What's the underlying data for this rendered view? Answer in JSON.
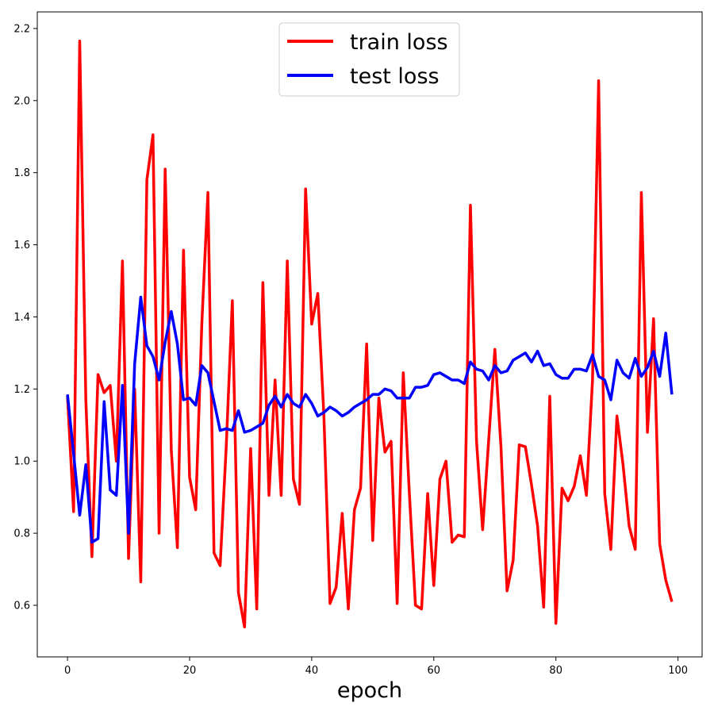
{
  "chart_data": {
    "type": "line",
    "title": "",
    "xlabel": "epoch",
    "ylabel": "",
    "xlim": [
      -4.95,
      103.95
    ],
    "ylim": [
      0.457,
      2.246
    ],
    "xticks": [
      0,
      20,
      40,
      60,
      80,
      100
    ],
    "yticks": [
      0.6,
      0.8,
      1.0,
      1.2,
      1.4,
      1.6,
      1.8,
      2.0,
      2.2
    ],
    "grid": false,
    "legend": "top-center",
    "series": [
      {
        "name": "train loss",
        "color": "#ff0000",
        "x": [
          0,
          1,
          2,
          3,
          4,
          5,
          6,
          7,
          8,
          9,
          10,
          11,
          12,
          13,
          14,
          15,
          16,
          17,
          18,
          19,
          20,
          21,
          22,
          23,
          24,
          25,
          26,
          27,
          28,
          29,
          30,
          31,
          32,
          33,
          34,
          35,
          36,
          37,
          38,
          39,
          40,
          41,
          42,
          43,
          44,
          45,
          46,
          47,
          48,
          49,
          50,
          51,
          52,
          53,
          54,
          55,
          56,
          57,
          58,
          59,
          60,
          61,
          62,
          63,
          64,
          65,
          66,
          67,
          68,
          69,
          70,
          71,
          72,
          73,
          74,
          75,
          76,
          77,
          78,
          79,
          80,
          81,
          82,
          83,
          84,
          85,
          86,
          87,
          88,
          89,
          90,
          91,
          92,
          93,
          94,
          95,
          96,
          97,
          98,
          99
        ],
        "values": [
          1.18,
          0.86,
          2.165,
          1.17,
          0.735,
          1.24,
          1.19,
          1.21,
          1.0,
          1.555,
          0.73,
          1.2,
          0.665,
          1.78,
          1.905,
          0.8,
          1.81,
          1.03,
          0.76,
          1.585,
          0.955,
          0.865,
          1.38,
          1.745,
          0.745,
          0.71,
          1.04,
          1.445,
          0.635,
          0.54,
          1.035,
          0.59,
          1.495,
          0.905,
          1.225,
          0.905,
          1.555,
          0.95,
          0.88,
          1.755,
          1.38,
          1.465,
          1.125,
          0.605,
          0.65,
          0.855,
          0.59,
          0.865,
          0.925,
          1.325,
          0.78,
          1.175,
          1.025,
          1.055,
          0.605,
          1.245,
          0.91,
          0.6,
          0.59,
          0.91,
          0.655,
          0.95,
          1.0,
          0.775,
          0.795,
          0.79,
          1.71,
          1.055,
          0.81,
          1.06,
          1.31,
          1.04,
          0.64,
          0.725,
          1.045,
          1.04,
          0.935,
          0.82,
          0.595,
          1.18,
          0.55,
          0.925,
          0.89,
          0.93,
          1.015,
          0.905,
          1.225,
          2.055,
          0.91,
          0.755,
          1.125,
          0.99,
          0.82,
          0.755,
          1.745,
          1.08,
          1.395,
          0.77,
          0.67,
          0.61
        ]
      },
      {
        "name": "test loss",
        "color": "#0000ff",
        "x": [
          0,
          1,
          2,
          3,
          4,
          5,
          6,
          7,
          8,
          9,
          10,
          11,
          12,
          13,
          14,
          15,
          16,
          17,
          18,
          19,
          20,
          21,
          22,
          23,
          24,
          25,
          26,
          27,
          28,
          29,
          30,
          31,
          32,
          33,
          34,
          35,
          36,
          37,
          38,
          39,
          40,
          41,
          42,
          43,
          44,
          45,
          46,
          47,
          48,
          49,
          50,
          51,
          52,
          53,
          54,
          55,
          56,
          57,
          58,
          59,
          60,
          61,
          62,
          63,
          64,
          65,
          66,
          67,
          68,
          69,
          70,
          71,
          72,
          73,
          74,
          75,
          76,
          77,
          78,
          79,
          80,
          81,
          82,
          83,
          84,
          85,
          86,
          87,
          88,
          89,
          90,
          91,
          92,
          93,
          94,
          95,
          96,
          97,
          98,
          99
        ],
        "values": [
          1.185,
          1.02,
          0.85,
          0.99,
          0.775,
          0.785,
          1.165,
          0.92,
          0.905,
          1.21,
          0.8,
          1.27,
          1.455,
          1.32,
          1.29,
          1.225,
          1.33,
          1.415,
          1.325,
          1.17,
          1.175,
          1.155,
          1.265,
          1.245,
          1.165,
          1.085,
          1.09,
          1.085,
          1.14,
          1.08,
          1.085,
          1.095,
          1.105,
          1.155,
          1.18,
          1.15,
          1.185,
          1.16,
          1.15,
          1.185,
          1.16,
          1.125,
          1.135,
          1.15,
          1.14,
          1.125,
          1.135,
          1.15,
          1.16,
          1.17,
          1.185,
          1.185,
          1.2,
          1.195,
          1.175,
          1.175,
          1.175,
          1.205,
          1.205,
          1.21,
          1.24,
          1.245,
          1.235,
          1.225,
          1.225,
          1.215,
          1.275,
          1.255,
          1.25,
          1.225,
          1.265,
          1.245,
          1.25,
          1.28,
          1.29,
          1.3,
          1.275,
          1.305,
          1.265,
          1.27,
          1.24,
          1.23,
          1.23,
          1.255,
          1.255,
          1.25,
          1.295,
          1.235,
          1.225,
          1.17,
          1.28,
          1.245,
          1.23,
          1.285,
          1.235,
          1.26,
          1.305,
          1.235,
          1.355,
          1.185
        ]
      }
    ]
  }
}
